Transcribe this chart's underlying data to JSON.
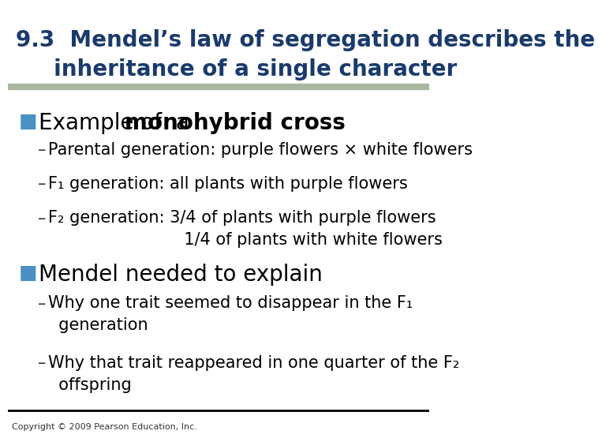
{
  "title_line1": "9.3  Mendel’s law of segregation describes the",
  "title_line2": "     inheritance of a single character",
  "title_color": "#1a3a6b",
  "title_fontsize": 20,
  "header_bar_color": "#a8b8a0",
  "bg_color": "#ffffff",
  "bullet_color": "#4a90c4",
  "bullet1_text_plain": "Example of  a ",
  "bullet1_text_bold": "monohybrid cross",
  "bullet1_fontsize": 20,
  "sub_bullet_fontsize": 15,
  "sub_bullets_1": [
    "Parental generation: purple flowers × white flowers",
    "F₁ generation: all plants with purple flowers",
    "F₂ generation: 3/4 of plants with purple flowers\n                          1/4 of plants with white flowers"
  ],
  "bullet2_text": "Mendel needed to explain",
  "bullet2_fontsize": 20,
  "sub_bullets_2": [
    "Why one trait seemed to disappear in the F₁\n  generation",
    "Why that trait reappeared in one quarter of the F₂\n  offspring"
  ],
  "footer_text": "Copyright © 2009 Pearson Education, Inc.",
  "footer_fontsize": 8,
  "bottom_bar_color": "#000000"
}
